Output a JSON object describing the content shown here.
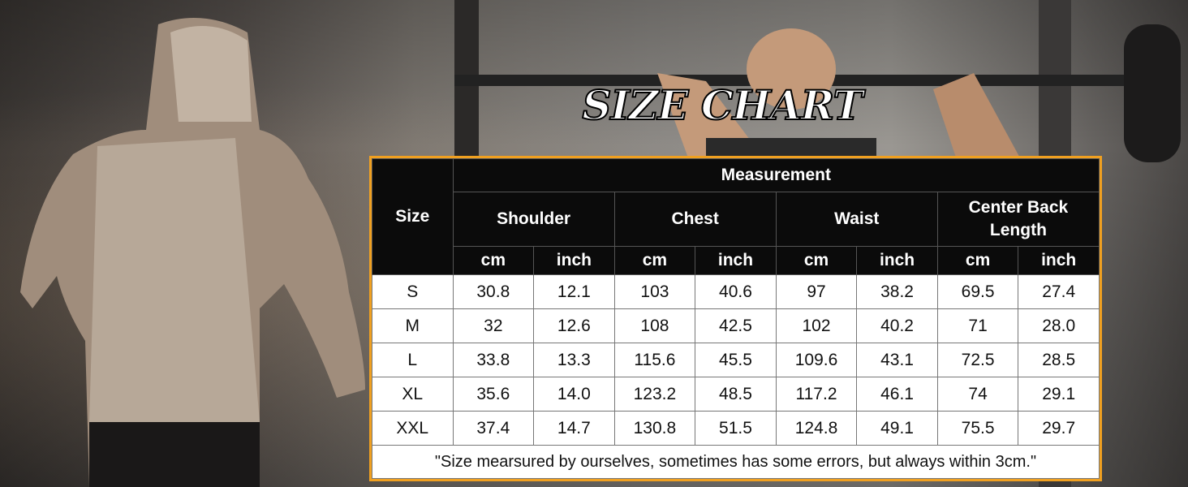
{
  "title": "SIZE CHART",
  "table": {
    "size_header": "Size",
    "measurement_header": "Measurement",
    "groups": [
      "Shoulder",
      "Chest",
      "Waist",
      "Center Back Length"
    ],
    "units": [
      "cm",
      "inch",
      "cm",
      "inch",
      "cm",
      "inch",
      "cm",
      "inch"
    ],
    "rows": [
      {
        "size": "S",
        "values": [
          "30.8",
          "12.1",
          "103",
          "40.6",
          "97",
          "38.2",
          "69.5",
          "27.4"
        ]
      },
      {
        "size": "M",
        "values": [
          "32",
          "12.6",
          "108",
          "42.5",
          "102",
          "40.2",
          "71",
          "28.0"
        ]
      },
      {
        "size": "L",
        "values": [
          "33.8",
          "13.3",
          "115.6",
          "45.5",
          "109.6",
          "43.1",
          "72.5",
          "28.5"
        ]
      },
      {
        "size": "XL",
        "values": [
          "35.6",
          "14.0",
          "123.2",
          "48.5",
          "117.2",
          "46.1",
          "74",
          "29.1"
        ]
      },
      {
        "size": "XXL",
        "values": [
          "37.4",
          "14.7",
          "130.8",
          "51.5",
          "124.8",
          "49.1",
          "75.5",
          "29.7"
        ]
      }
    ],
    "note": "\"Size mearsured by ourselves, sometimes has some errors, but always within 3cm.\""
  },
  "colors": {
    "border": "#f0a020",
    "header_bg": "#0b0b0b"
  }
}
